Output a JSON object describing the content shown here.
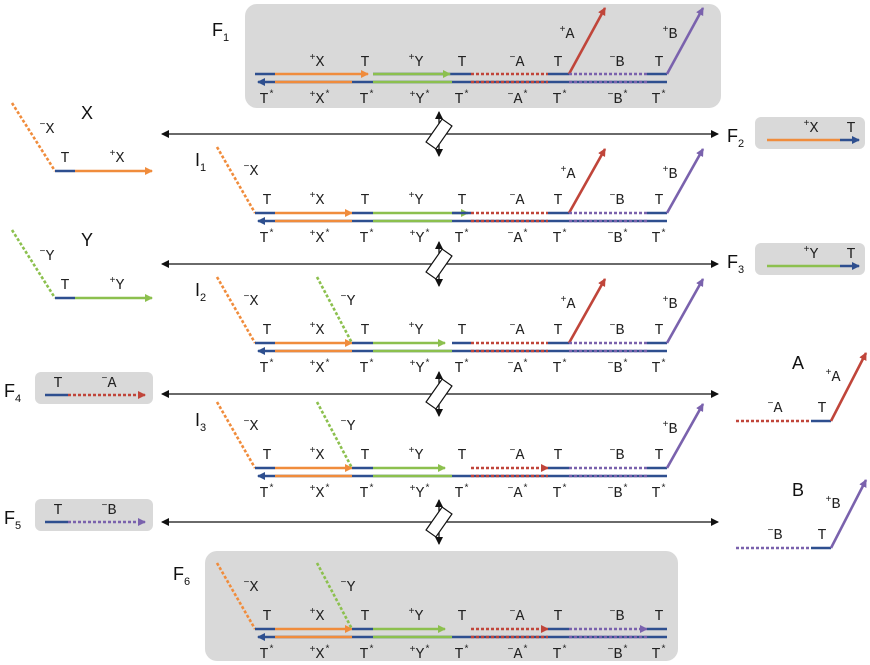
{
  "colors": {
    "box_fill": "#d9d9d9",
    "T": "#2e4f8f",
    "X": "#f08c3c",
    "Y": "#8cc04e",
    "A": "#c0453a",
    "B": "#7a62ad",
    "arrow": "#111111"
  },
  "labels": {
    "X": "X",
    "Y": "Y",
    "A": "A",
    "B": "B",
    "F": "F",
    "I": "I",
    "T": "T",
    "X_dom": "X",
    "Y_dom": "Y",
    "A_dom": "A",
    "B_dom": "B",
    "T_star": "T*",
    "X_star": "X*",
    "Y_star": "Y*",
    "A_star": "A*",
    "B_star": "B*",
    "plus": "+",
    "minus": "−",
    "star": "*"
  },
  "states": {
    "F1": "1",
    "F2": "2",
    "F3": "3",
    "F4": "4",
    "F5": "5",
    "F6": "6",
    "I1": "1",
    "I2": "2",
    "I3": "3"
  },
  "bottom_labels": [
    "T*",
    "+X*",
    "T*",
    "+Y*",
    "T*",
    "−A*",
    "T*",
    "−B*",
    "T*"
  ]
}
